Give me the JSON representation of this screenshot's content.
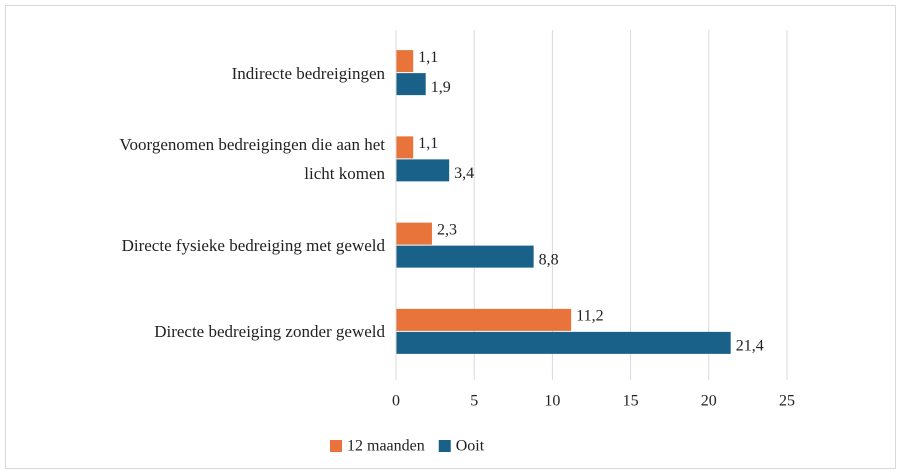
{
  "chart_data": {
    "type": "hbar",
    "categories": [
      "Indirecte bedreigingen",
      "Voorgenomen bedreigingen die aan het licht komen",
      "Directe fysieke bedreiging met geweld",
      "Directe bedreiging zonder geweld"
    ],
    "series": [
      {
        "name": "12 maanden",
        "color": "#e8743b",
        "values": [
          1.1,
          1.1,
          2.3,
          11.2
        ],
        "value_labels": [
          "1,1",
          "1,1",
          "2,3",
          "11,2"
        ]
      },
      {
        "name": "Ooit",
        "color": "#1a6189",
        "values": [
          1.9,
          3.4,
          8.8,
          21.4
        ],
        "value_labels": [
          "1,9",
          "3,4",
          "8,8",
          "21,4"
        ]
      }
    ],
    "xlim": [
      0,
      25
    ],
    "xticks": [
      0,
      5,
      10,
      15,
      20,
      25
    ],
    "grid": true,
    "legend": "bottom"
  }
}
